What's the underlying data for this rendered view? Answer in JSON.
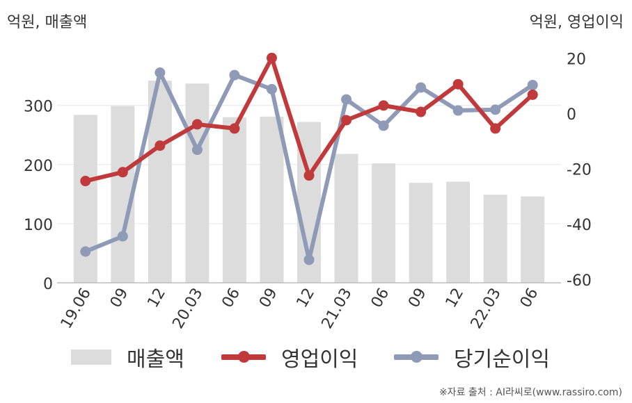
{
  "unit_left": "억원, 매출액",
  "unit_right": "억원, 영업이익",
  "source": "※자료 출처 : AI라씨로(www.rassiro.com)",
  "chart_data": {
    "type": "bar+line",
    "categories": [
      "19.06",
      "09",
      "12",
      "20.03",
      "06",
      "09",
      "12",
      "21.03",
      "06",
      "09",
      "12",
      "22.03",
      "06"
    ],
    "left_axis": {
      "ticks": [
        "0",
        "100",
        "200",
        "300"
      ],
      "ylim": [
        0,
        375
      ]
    },
    "right_axis": {
      "ticks": [
        "-60",
        "-40",
        "-20",
        "0",
        "20"
      ],
      "ylim": [
        -60,
        22
      ]
    },
    "grid": true,
    "legend_position": "bottom",
    "series": [
      {
        "name": "매출액",
        "type": "bar",
        "axis": "left",
        "color": "#dcdcdc",
        "values": [
          284,
          299,
          342,
          337,
          280,
          281,
          272,
          218,
          202,
          169,
          171,
          149,
          146
        ]
      },
      {
        "name": "영업이익",
        "type": "line",
        "axis": "right",
        "color": "#c0393b",
        "values": [
          -24.5,
          -21.3,
          -11.7,
          -4,
          -5.5,
          20,
          -22.5,
          -2.5,
          2.8,
          0.5,
          10.5,
          -5.5,
          6.7
        ]
      },
      {
        "name": "당기순이익",
        "type": "line",
        "axis": "right",
        "color": "#8e9ab6",
        "values": [
          -50,
          -44.5,
          14.7,
          -13.2,
          13.8,
          8.7,
          -53,
          5,
          -4.5,
          9.3,
          1,
          1.3,
          10.2
        ]
      }
    ]
  }
}
